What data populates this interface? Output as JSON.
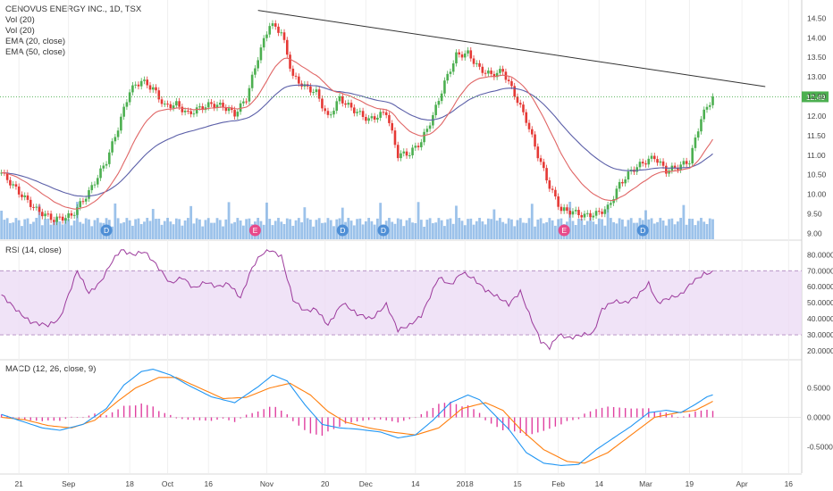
{
  "chart_data": {
    "type": "candlestick",
    "main": {
      "legend": [
        "CENOVUS ENERGY INC., 1D, TSX",
        "Vol (20)",
        "Vol (20)",
        "EMA (20, close)",
        "EMA (50, close)"
      ],
      "y_ticks": [
        "14.50",
        "14.00",
        "13.50",
        "13.00",
        "12.50",
        "12.00",
        "11.50",
        "11.00",
        "10.50",
        "10.00",
        "9.50",
        "9.00"
      ],
      "ylim": [
        8.85,
        14.85
      ],
      "last_price": 12.49,
      "last_price_label": "12.49",
      "trendline": {
        "start_index": 88,
        "start_value": 14.7,
        "end_index": 262,
        "end_value": 12.75
      },
      "events": [
        {
          "label": "D",
          "index": 36
        },
        {
          "label": "E",
          "index": 87
        },
        {
          "label": "D",
          "index": 117
        },
        {
          "label": "D",
          "index": 131
        },
        {
          "label": "E",
          "index": 193
        },
        {
          "label": "D",
          "index": 220
        }
      ],
      "volume_overlay": "Vol (20)"
    },
    "rsi": {
      "label": "RSI (14, close)",
      "y_ticks": [
        "80.0000",
        "70.0000",
        "60.0000",
        "50.0000",
        "40.0000",
        "30.0000",
        "20.0000"
      ],
      "ylim": [
        15,
        88
      ],
      "band": [
        30,
        70
      ],
      "anchors": [
        [
          0,
          55
        ],
        [
          6,
          44
        ],
        [
          10,
          38
        ],
        [
          16,
          36
        ],
        [
          20,
          40
        ],
        [
          26,
          70
        ],
        [
          30,
          56
        ],
        [
          34,
          63
        ],
        [
          38,
          76
        ],
        [
          41,
          83
        ],
        [
          45,
          80
        ],
        [
          49,
          82
        ],
        [
          53,
          74
        ],
        [
          58,
          62
        ],
        [
          62,
          66
        ],
        [
          66,
          59
        ],
        [
          70,
          63
        ],
        [
          74,
          60
        ],
        [
          78,
          62
        ],
        [
          82,
          53
        ],
        [
          86,
          72
        ],
        [
          89,
          80
        ],
        [
          92,
          83
        ],
        [
          96,
          79
        ],
        [
          100,
          52
        ],
        [
          104,
          45
        ],
        [
          108,
          46
        ],
        [
          112,
          36
        ],
        [
          117,
          50
        ],
        [
          122,
          43
        ],
        [
          127,
          40
        ],
        [
          132,
          49
        ],
        [
          136,
          33
        ],
        [
          140,
          36
        ],
        [
          144,
          42
        ],
        [
          148,
          58
        ],
        [
          150,
          66
        ],
        [
          154,
          61
        ],
        [
          158,
          69
        ],
        [
          162,
          65
        ],
        [
          166,
          58
        ],
        [
          170,
          54
        ],
        [
          174,
          49
        ],
        [
          178,
          57
        ],
        [
          181,
          43
        ],
        [
          185,
          26
        ],
        [
          188,
          22
        ],
        [
          191,
          30
        ],
        [
          195,
          28
        ],
        [
          199,
          30
        ],
        [
          203,
          31
        ],
        [
          206,
          46
        ],
        [
          210,
          51
        ],
        [
          214,
          50
        ],
        [
          218,
          54
        ],
        [
          222,
          62
        ],
        [
          225,
          50
        ],
        [
          229,
          53
        ],
        [
          233,
          55
        ],
        [
          237,
          63
        ],
        [
          241,
          68
        ],
        [
          244,
          69
        ]
      ]
    },
    "macd": {
      "label": "MACD (12, 26, close, 9)",
      "y_ticks": [
        "0.5000",
        "0.0000",
        "-0.5000"
      ],
      "ylim": [
        -0.95,
        0.95
      ],
      "x_ticks": [
        {
          "label": "21",
          "index": 6
        },
        {
          "label": "Sep",
          "index": 23
        },
        {
          "label": "18",
          "index": 44
        },
        {
          "label": "Oct",
          "index": 57
        },
        {
          "label": "16",
          "index": 71
        },
        {
          "label": "Nov",
          "index": 91
        },
        {
          "label": "20",
          "index": 111
        },
        {
          "label": "Dec",
          "index": 125
        },
        {
          "label": "14",
          "index": 142
        },
        {
          "label": "2018",
          "index": 159
        },
        {
          "label": "15",
          "index": 177
        },
        {
          "label": "Feb",
          "index": 191
        },
        {
          "label": "14",
          "index": 205
        },
        {
          "label": "Mar",
          "index": 221
        },
        {
          "label": "19",
          "index": 236
        },
        {
          "label": "Apr",
          "index": 254
        },
        {
          "label": "16",
          "index": 270
        }
      ],
      "macd_anchors": [
        [
          0,
          0.05
        ],
        [
          6,
          -0.05
        ],
        [
          14,
          -0.18
        ],
        [
          20,
          -0.22
        ],
        [
          28,
          -0.12
        ],
        [
          36,
          0.15
        ],
        [
          42,
          0.55
        ],
        [
          48,
          0.78
        ],
        [
          52,
          0.82
        ],
        [
          58,
          0.72
        ],
        [
          64,
          0.55
        ],
        [
          72,
          0.35
        ],
        [
          80,
          0.25
        ],
        [
          88,
          0.52
        ],
        [
          93,
          0.72
        ],
        [
          98,
          0.62
        ],
        [
          104,
          0.22
        ],
        [
          110,
          -0.12
        ],
        [
          116,
          -0.18
        ],
        [
          122,
          -0.2
        ],
        [
          130,
          -0.25
        ],
        [
          136,
          -0.35
        ],
        [
          142,
          -0.3
        ],
        [
          148,
          -0.05
        ],
        [
          154,
          0.25
        ],
        [
          160,
          0.38
        ],
        [
          164,
          0.3
        ],
        [
          168,
          0.1
        ],
        [
          174,
          -0.2
        ],
        [
          180,
          -0.6
        ],
        [
          186,
          -0.78
        ],
        [
          192,
          -0.82
        ],
        [
          198,
          -0.8
        ],
        [
          204,
          -0.55
        ],
        [
          210,
          -0.35
        ],
        [
          216,
          -0.15
        ],
        [
          222,
          0.08
        ],
        [
          228,
          0.12
        ],
        [
          233,
          0.08
        ],
        [
          238,
          0.22
        ],
        [
          242,
          0.35
        ],
        [
          245,
          0.4
        ]
      ],
      "signal_anchors": [
        [
          0,
          0.0
        ],
        [
          8,
          -0.04
        ],
        [
          16,
          -0.14
        ],
        [
          24,
          -0.18
        ],
        [
          32,
          -0.05
        ],
        [
          40,
          0.28
        ],
        [
          46,
          0.5
        ],
        [
          54,
          0.68
        ],
        [
          60,
          0.68
        ],
        [
          68,
          0.5
        ],
        [
          76,
          0.32
        ],
        [
          84,
          0.34
        ],
        [
          92,
          0.5
        ],
        [
          99,
          0.58
        ],
        [
          106,
          0.38
        ],
        [
          112,
          0.1
        ],
        [
          118,
          -0.08
        ],
        [
          126,
          -0.18
        ],
        [
          134,
          -0.25
        ],
        [
          142,
          -0.3
        ],
        [
          150,
          -0.18
        ],
        [
          158,
          0.15
        ],
        [
          166,
          0.25
        ],
        [
          172,
          0.12
        ],
        [
          178,
          -0.2
        ],
        [
          186,
          -0.55
        ],
        [
          194,
          -0.75
        ],
        [
          200,
          -0.78
        ],
        [
          208,
          -0.6
        ],
        [
          216,
          -0.3
        ],
        [
          224,
          0.0
        ],
        [
          232,
          0.08
        ],
        [
          238,
          0.12
        ],
        [
          242,
          0.22
        ],
        [
          245,
          0.3
        ]
      ]
    },
    "colors": {
      "up": "#4caf50",
      "down": "#e53935",
      "ema20": "#e06666",
      "ema50": "#5b5fa8",
      "rsi": "#9c3a9c",
      "macd": "#2196f3",
      "signal": "#ff7f0e",
      "hist": "#e040a0",
      "volume": "#4a90d9",
      "event": "#4f8fd6",
      "earnings": "#e84a8a"
    }
  }
}
